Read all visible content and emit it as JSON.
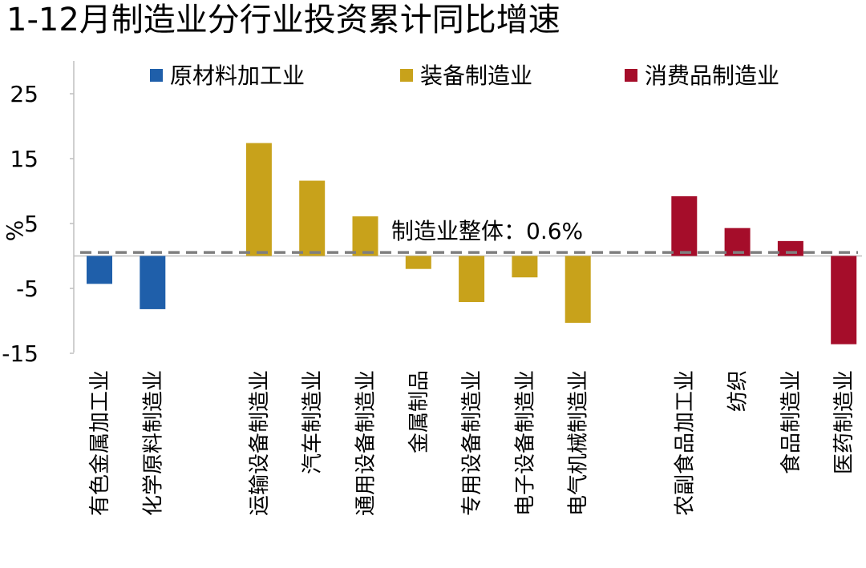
{
  "chart_data": {
    "type": "bar",
    "title": "1-12月制造业分行业投资累计同比增速",
    "ylabel": "%",
    "ylim": [
      -15,
      30
    ],
    "yticks": [
      25,
      15,
      5,
      -5,
      -15
    ],
    "grid": false,
    "legend_position": "top",
    "series": [
      {
        "name": "原材料加工业",
        "color": "#1f5faa",
        "categories": [
          "有色金属加工业",
          "化学原料制造业"
        ],
        "values": [
          -4.3,
          -8.2
        ]
      },
      {
        "name": "装备制造业",
        "color": "#c8a21b",
        "categories": [
          "运输设备制造业",
          "汽车制造业",
          "通用设备制造业",
          "金属制品",
          "专用设备制造业",
          "电子设备制造业",
          "电气机械制造业"
        ],
        "values": [
          17.4,
          11.6,
          6.1,
          -2.0,
          -7.1,
          -3.3,
          -10.3
        ]
      },
      {
        "name": "消费品制造业",
        "color": "#a50d2a",
        "categories": [
          "农副食品加工业",
          "纺织",
          "食品制造业",
          "医药制造业"
        ],
        "values": [
          9.2,
          4.3,
          2.3,
          -13.6
        ]
      }
    ],
    "reference_line": {
      "label": "制造业整体：0.6%",
      "value": 0.6,
      "color": "#7f7f7f"
    }
  }
}
